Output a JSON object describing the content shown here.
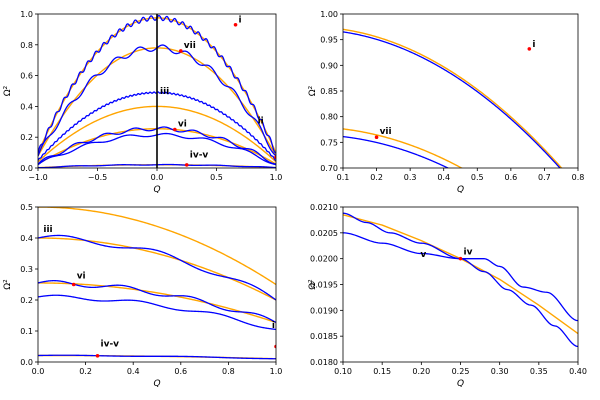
{
  "colors": {
    "curve": "#0000ff",
    "approx": "#ffa500",
    "marker": "#ff0000",
    "axis": "#000000"
  },
  "chart_data": [
    {
      "type": "line",
      "panel": "top-left",
      "xlabel": "Q",
      "ylabel": "Ω²",
      "xlim": [
        -1.0,
        1.0
      ],
      "ylim": [
        0.0,
        1.0
      ],
      "xticks": [
        -1.0,
        -0.5,
        0.0,
        0.5,
        1.0
      ],
      "xticklabels": [
        "−1.0",
        "−0.5",
        "0.0",
        "0.5",
        "1.0"
      ],
      "yticks": [
        0.0,
        0.2,
        0.4,
        0.6,
        0.8,
        1.0
      ],
      "yticklabels": [
        "0.0",
        "0.2",
        "0.4",
        "0.6",
        "0.8",
        "1.0"
      ],
      "vline": 0.0,
      "annotations": [
        {
          "label": "i",
          "x": 0.66,
          "y": 0.925
        },
        {
          "label": "vii",
          "x": 0.2,
          "y": 0.76
        },
        {
          "label": "iii",
          "x": 0.0,
          "y": 0.46
        },
        {
          "label": "vi",
          "x": 0.15,
          "y": 0.25
        },
        {
          "label": "ii",
          "x": 0.82,
          "y": 0.27
        },
        {
          "label": "iv-v",
          "x": 0.25,
          "y": 0.05
        }
      ],
      "orange_curves": [
        {
          "name": "i-fit",
          "a": 0.975,
          "b": 0.06,
          "x": [
            -1.0,
            1.0
          ]
        },
        {
          "name": "vii-fit",
          "a": 0.78,
          "b": 0.06,
          "x": [
            -1.0,
            1.0
          ]
        },
        {
          "name": "iii-fit",
          "a": 0.4,
          "b": 0.05,
          "x": [
            -1.0,
            1.0
          ]
        },
        {
          "name": "vi-fit",
          "a": 0.255,
          "b": 0.03,
          "x": [
            -1.0,
            1.0
          ]
        },
        {
          "name": "iv-fit",
          "a": 0.021,
          "b": 0.005,
          "x": [
            -1.0,
            1.0
          ]
        }
      ],
      "blue_curves": [
        {
          "name": "i",
          "a": 0.975,
          "b": 0.06,
          "amp": 0.015,
          "freq": 30
        },
        {
          "name": "vii",
          "a": 0.78,
          "b": 0.06,
          "amp": 0.02,
          "freq": 10
        },
        {
          "name": "iii",
          "a": 0.49,
          "b": 0.08,
          "amp": 0.004,
          "freq": 60
        },
        {
          "name": "vi",
          "a": 0.255,
          "b": 0.03,
          "amp": 0.012,
          "freq": 8
        },
        {
          "name": "ii",
          "a": 0.215,
          "b": 0.03,
          "amp": 0.01,
          "freq": 6
        },
        {
          "name": "iv",
          "a": 0.021,
          "b": 0.005,
          "amp": 0.002,
          "freq": 5
        }
      ],
      "markers": [
        {
          "x": 0.66,
          "y": 0.93
        },
        {
          "x": 0.2,
          "y": 0.76
        },
        {
          "x": 0.15,
          "y": 0.25
        },
        {
          "x": 0.25,
          "y": 0.02
        },
        {
          "x": 1.0,
          "y": 0.07
        }
      ]
    },
    {
      "type": "line",
      "panel": "top-right",
      "xlabel": "Q",
      "ylabel": "Ω²",
      "xlim": [
        0.1,
        0.8
      ],
      "ylim": [
        0.7,
        1.0
      ],
      "xticks": [
        0.1,
        0.2,
        0.3,
        0.4,
        0.5,
        0.6,
        0.7,
        0.8
      ],
      "xticklabels": [
        "0.1",
        "0.2",
        "0.3",
        "0.4",
        "0.5",
        "0.6",
        "0.7",
        "0.8"
      ],
      "yticks": [
        0.7,
        0.75,
        0.8,
        0.85,
        0.9,
        0.95,
        1.0
      ],
      "yticklabels": [
        "0.70",
        "0.75",
        "0.80",
        "0.85",
        "0.90",
        "0.95",
        "1.00"
      ],
      "annotations": [
        {
          "label": "i",
          "x": 0.655,
          "y": 0.93
        },
        {
          "label": "vii",
          "x": 0.2,
          "y": 0.76
        }
      ],
      "orange_curves": [
        {
          "name": "i-fit",
          "a": 0.975,
          "b": 0.09,
          "x": [
            0.1,
            0.8
          ]
        },
        {
          "name": "vii-fit",
          "a": 0.78,
          "b": 0.45,
          "x": [
            0.1,
            0.8
          ]
        }
      ],
      "blue_curves": [
        {
          "name": "i",
          "a": 0.97,
          "b": 0.09,
          "x": [
            0.1,
            0.8
          ]
        },
        {
          "name": "vii",
          "a": 0.765,
          "b": 0.3,
          "x": [
            0.1,
            0.52
          ]
        }
      ],
      "markers": [
        {
          "x": 0.655,
          "y": 0.932
        },
        {
          "x": 0.2,
          "y": 0.76
        }
      ]
    },
    {
      "type": "line",
      "panel": "bottom-left",
      "xlabel": "Q",
      "ylabel": "Ω²",
      "xlim": [
        0.0,
        1.0
      ],
      "ylim": [
        0.0,
        0.5
      ],
      "xticks": [
        0.0,
        0.2,
        0.4,
        0.6,
        0.8,
        1.0
      ],
      "xticklabels": [
        "0.0",
        "0.2",
        "0.4",
        "0.6",
        "0.8",
        "1.0"
      ],
      "yticks": [
        0.0,
        0.1,
        0.2,
        0.3,
        0.4,
        0.5
      ],
      "yticklabels": [
        "0.0",
        "0.1",
        "0.2",
        "0.3",
        "0.4",
        "0.5"
      ],
      "annotations": [
        {
          "label": "iii",
          "x": 0.01,
          "y": 0.41
        },
        {
          "label": "vi",
          "x": 0.15,
          "y": 0.26
        },
        {
          "label": "ii",
          "x": 0.97,
          "y": 0.1
        },
        {
          "label": "iv-v",
          "x": 0.25,
          "y": 0.04
        }
      ],
      "orange_curves": [
        {
          "name": "iii-fit",
          "a": 0.5,
          "b": 0.1,
          "x": [
            0.0,
            1.0
          ]
        },
        {
          "name": "iii-fit2",
          "a": 0.4,
          "b": 0.15,
          "x": [
            0.0,
            1.0
          ]
        },
        {
          "name": "vi-fit",
          "a": 0.255,
          "b": 0.05,
          "x": [
            0.0,
            1.0
          ]
        },
        {
          "name": "iv-fit",
          "a": 0.021,
          "b": 0.01,
          "x": [
            0.0,
            1.0
          ]
        }
      ],
      "blue_curves": [
        {
          "name": "iii",
          "a": 0.4,
          "b": 0.12,
          "amp": 0.01,
          "freq": 5
        },
        {
          "name": "vi",
          "a": 0.255,
          "b": 0.05,
          "amp": 0.008,
          "freq": 7
        },
        {
          "name": "ii",
          "a": 0.21,
          "b": 0.05,
          "amp": 0.006,
          "freq": 6
        },
        {
          "name": "iv",
          "a": 0.021,
          "b": 0.01,
          "amp": 0.001,
          "freq": 4
        }
      ],
      "markers": [
        {
          "x": 0.15,
          "y": 0.25
        },
        {
          "x": 0.25,
          "y": 0.02
        },
        {
          "x": 1.0,
          "y": 0.05
        }
      ]
    },
    {
      "type": "line",
      "panel": "bottom-right",
      "xlabel": "Q",
      "ylabel": "Ω²",
      "xlim": [
        0.1,
        0.4
      ],
      "ylim": [
        0.018,
        0.021
      ],
      "xticks": [
        0.1,
        0.15,
        0.2,
        0.25,
        0.3,
        0.35,
        0.4
      ],
      "xticklabels": [
        "0.10",
        "0.15",
        "0.20",
        "0.25",
        "0.30",
        "0.35",
        "0.40"
      ],
      "yticks": [
        0.018,
        0.0185,
        0.019,
        0.0195,
        0.02,
        0.0205,
        0.021
      ],
      "yticklabels": [
        "0.0180",
        "0.0185",
        "0.0190",
        "0.0195",
        "0.0200",
        "0.0205",
        "0.0210"
      ],
      "annotations": [
        {
          "label": "iv",
          "x": 0.25,
          "y": 0.02002
        },
        {
          "label": "v",
          "x": 0.195,
          "y": 0.01997
        }
      ],
      "orange_curves": [
        {
          "name": "fit",
          "x": [
            0.1,
            0.15,
            0.2,
            0.25,
            0.3,
            0.35,
            0.4
          ],
          "y": [
            0.02085,
            0.02065,
            0.02035,
            0.02,
            0.0196,
            0.0191,
            0.01855
          ]
        }
      ],
      "blue_curves": [
        {
          "name": "iv",
          "x": [
            0.1,
            0.15,
            0.2,
            0.25,
            0.28,
            0.3,
            0.33,
            0.36,
            0.4
          ],
          "y": [
            0.0205,
            0.0203,
            0.0201,
            0.02,
            0.02,
            0.01985,
            0.01945,
            0.01935,
            0.0188
          ]
        },
        {
          "name": "v",
          "x": [
            0.1,
            0.13,
            0.16,
            0.2,
            0.25,
            0.28,
            0.31,
            0.34,
            0.37,
            0.4
          ],
          "y": [
            0.02088,
            0.0207,
            0.0205,
            0.0203,
            0.02,
            0.01975,
            0.0194,
            0.0191,
            0.0187,
            0.0183
          ]
        }
      ],
      "markers": [
        {
          "x": 0.25,
          "y": 0.02
        }
      ]
    }
  ]
}
